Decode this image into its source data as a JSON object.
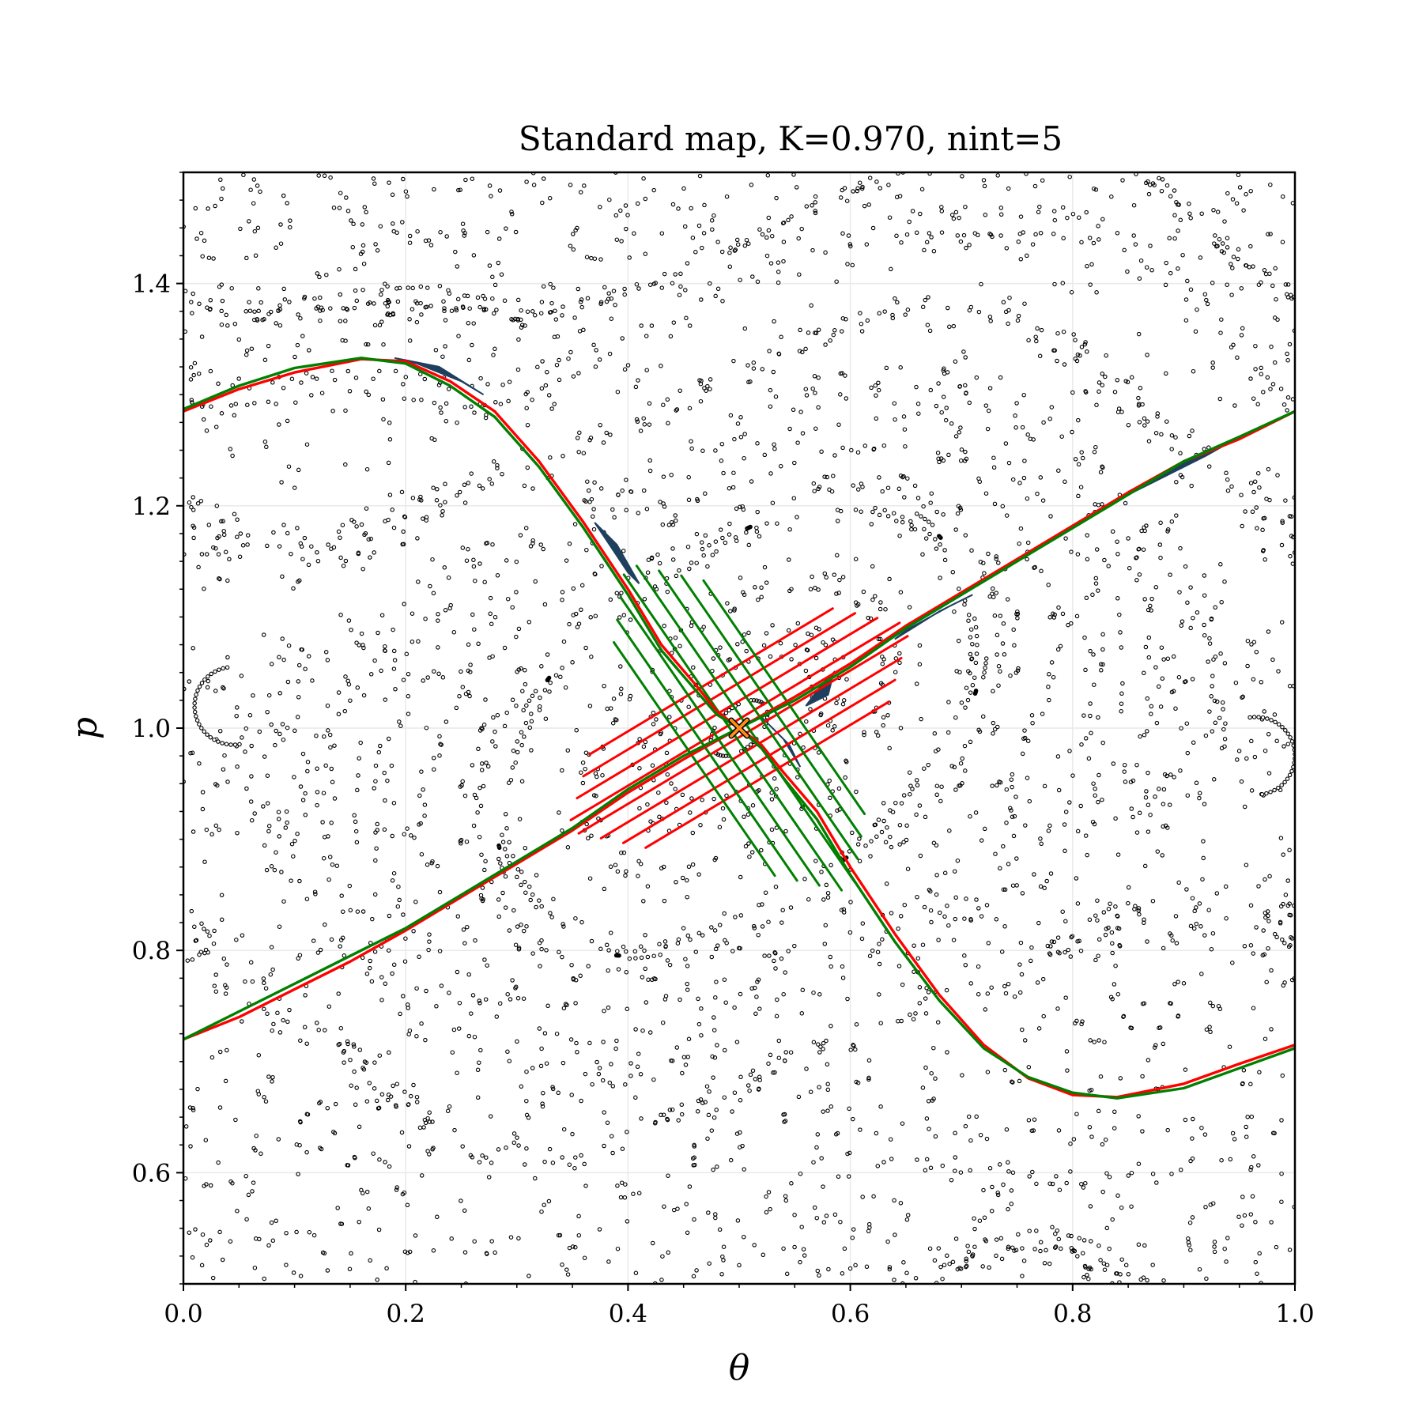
{
  "chart_data": {
    "type": "scatter",
    "title": "Standard map, K=0.970, nint=5",
    "xlabel": "θ",
    "ylabel": "p",
    "xlim": [
      0.0,
      1.0
    ],
    "ylim": [
      0.5,
      1.5
    ],
    "xticks": [
      "0.0",
      "0.2",
      "0.4",
      "0.6",
      "0.8",
      "1.0"
    ],
    "yticks": [
      "0.6",
      "0.8",
      "1.0",
      "1.2",
      "1.4"
    ],
    "grid": true,
    "map": {
      "K": 0.97,
      "nint": 5
    },
    "fixed_point": {
      "theta": 0.5,
      "p": 1.0,
      "marker": "x",
      "color": "#ff8c1a"
    },
    "unstable_manifold": {
      "color": "#ff0000",
      "points": [
        [
          0.0,
          1.285
        ],
        [
          0.05,
          1.305
        ],
        [
          0.1,
          1.32
        ],
        [
          0.16,
          1.332
        ],
        [
          0.2,
          1.33
        ],
        [
          0.24,
          1.312
        ],
        [
          0.28,
          1.285
        ],
        [
          0.32,
          1.24
        ],
        [
          0.36,
          1.185
        ],
        [
          0.4,
          1.125
        ],
        [
          0.43,
          1.075
        ],
        [
          0.46,
          1.04
        ],
        [
          0.48,
          1.015
        ],
        [
          0.5,
          1.0
        ],
        [
          0.52,
          0.985
        ],
        [
          0.54,
          0.96
        ],
        [
          0.57,
          0.925
        ],
        [
          0.6,
          0.875
        ],
        [
          0.64,
          0.815
        ],
        [
          0.68,
          0.76
        ],
        [
          0.72,
          0.715
        ],
        [
          0.76,
          0.685
        ],
        [
          0.8,
          0.67
        ],
        [
          0.84,
          0.668
        ],
        [
          0.9,
          0.68
        ],
        [
          0.95,
          0.698
        ],
        [
          1.0,
          0.715
        ]
      ]
    },
    "stable_manifold": {
      "color": "#008000",
      "points": [
        [
          0.0,
          0.72
        ],
        [
          0.05,
          0.745
        ],
        [
          0.1,
          0.77
        ],
        [
          0.15,
          0.795
        ],
        [
          0.2,
          0.82
        ],
        [
          0.25,
          0.85
        ],
        [
          0.3,
          0.88
        ],
        [
          0.35,
          0.91
        ],
        [
          0.4,
          0.945
        ],
        [
          0.45,
          0.975
        ],
        [
          0.5,
          1.0
        ],
        [
          0.55,
          1.025
        ],
        [
          0.6,
          1.055
        ],
        [
          0.65,
          1.09
        ],
        [
          0.7,
          1.12
        ],
        [
          0.75,
          1.15
        ],
        [
          0.8,
          1.18
        ],
        [
          0.85,
          1.21
        ],
        [
          0.9,
          1.24
        ],
        [
          0.95,
          1.262
        ],
        [
          1.0,
          1.285
        ]
      ]
    },
    "unstable_manifold_2": {
      "color": "#ff0000",
      "points": [
        [
          0.0,
          0.72
        ],
        [
          0.05,
          0.74
        ],
        [
          0.1,
          0.765
        ],
        [
          0.15,
          0.79
        ],
        [
          0.2,
          0.818
        ],
        [
          0.25,
          0.848
        ],
        [
          0.3,
          0.878
        ],
        [
          0.35,
          0.908
        ],
        [
          0.4,
          0.942
        ],
        [
          0.45,
          0.972
        ],
        [
          0.5,
          1.0
        ],
        [
          0.55,
          1.028
        ],
        [
          0.6,
          1.058
        ],
        [
          0.65,
          1.092
        ],
        [
          0.7,
          1.122
        ],
        [
          0.75,
          1.152
        ],
        [
          0.8,
          1.182
        ],
        [
          0.85,
          1.212
        ],
        [
          0.9,
          1.24
        ],
        [
          0.95,
          1.26
        ],
        [
          1.0,
          1.285
        ]
      ]
    },
    "stable_manifold_2": {
      "color": "#008000",
      "points": [
        [
          0.0,
          1.287
        ],
        [
          0.05,
          1.308
        ],
        [
          0.1,
          1.324
        ],
        [
          0.16,
          1.333
        ],
        [
          0.2,
          1.328
        ],
        [
          0.24,
          1.308
        ],
        [
          0.28,
          1.28
        ],
        [
          0.32,
          1.235
        ],
        [
          0.36,
          1.18
        ],
        [
          0.4,
          1.12
        ],
        [
          0.43,
          1.07
        ],
        [
          0.46,
          1.035
        ],
        [
          0.48,
          1.012
        ],
        [
          0.5,
          1.0
        ],
        [
          0.52,
          0.982
        ],
        [
          0.54,
          0.955
        ],
        [
          0.57,
          0.918
        ],
        [
          0.6,
          0.868
        ],
        [
          0.64,
          0.808
        ],
        [
          0.68,
          0.755
        ],
        [
          0.72,
          0.712
        ],
        [
          0.76,
          0.686
        ],
        [
          0.8,
          0.672
        ],
        [
          0.84,
          0.667
        ],
        [
          0.9,
          0.676
        ],
        [
          0.95,
          0.694
        ],
        [
          1.0,
          0.712
        ]
      ]
    },
    "lobes": {
      "color": "#1f3f5f",
      "polygons": [
        [
          [
            0.19,
            1.333
          ],
          [
            0.23,
            1.325
          ],
          [
            0.27,
            1.3
          ],
          [
            0.25,
            1.312
          ],
          [
            0.21,
            1.328
          ]
        ],
        [
          [
            0.37,
            1.185
          ],
          [
            0.39,
            1.165
          ],
          [
            0.41,
            1.13
          ],
          [
            0.4,
            1.14
          ],
          [
            0.38,
            1.17
          ]
        ],
        [
          [
            0.64,
            1.08
          ],
          [
            0.68,
            1.105
          ],
          [
            0.71,
            1.12
          ],
          [
            0.69,
            1.11
          ],
          [
            0.65,
            1.088
          ]
        ],
        [
          [
            0.85,
            1.21
          ],
          [
            0.9,
            1.238
          ],
          [
            0.95,
            1.262
          ],
          [
            0.92,
            1.245
          ],
          [
            0.87,
            1.22
          ]
        ],
        [
          [
            0.56,
            1.02
          ],
          [
            0.58,
            1.03
          ],
          [
            0.585,
            1.05
          ],
          [
            0.575,
            1.04
          ]
        ],
        [
          [
            0.52,
            1.01
          ],
          [
            0.54,
            0.99
          ],
          [
            0.555,
            0.965
          ],
          [
            0.545,
            0.985
          ]
        ]
      ]
    },
    "tangle_loops": {
      "color_unstable": "#ff0000",
      "color_stable": "#008000",
      "count": 8,
      "amplitude": 0.055,
      "angle": 0.58
    },
    "scatter": {
      "color": "#000000",
      "count": 4200,
      "note_chaotic_sea": true
    }
  }
}
